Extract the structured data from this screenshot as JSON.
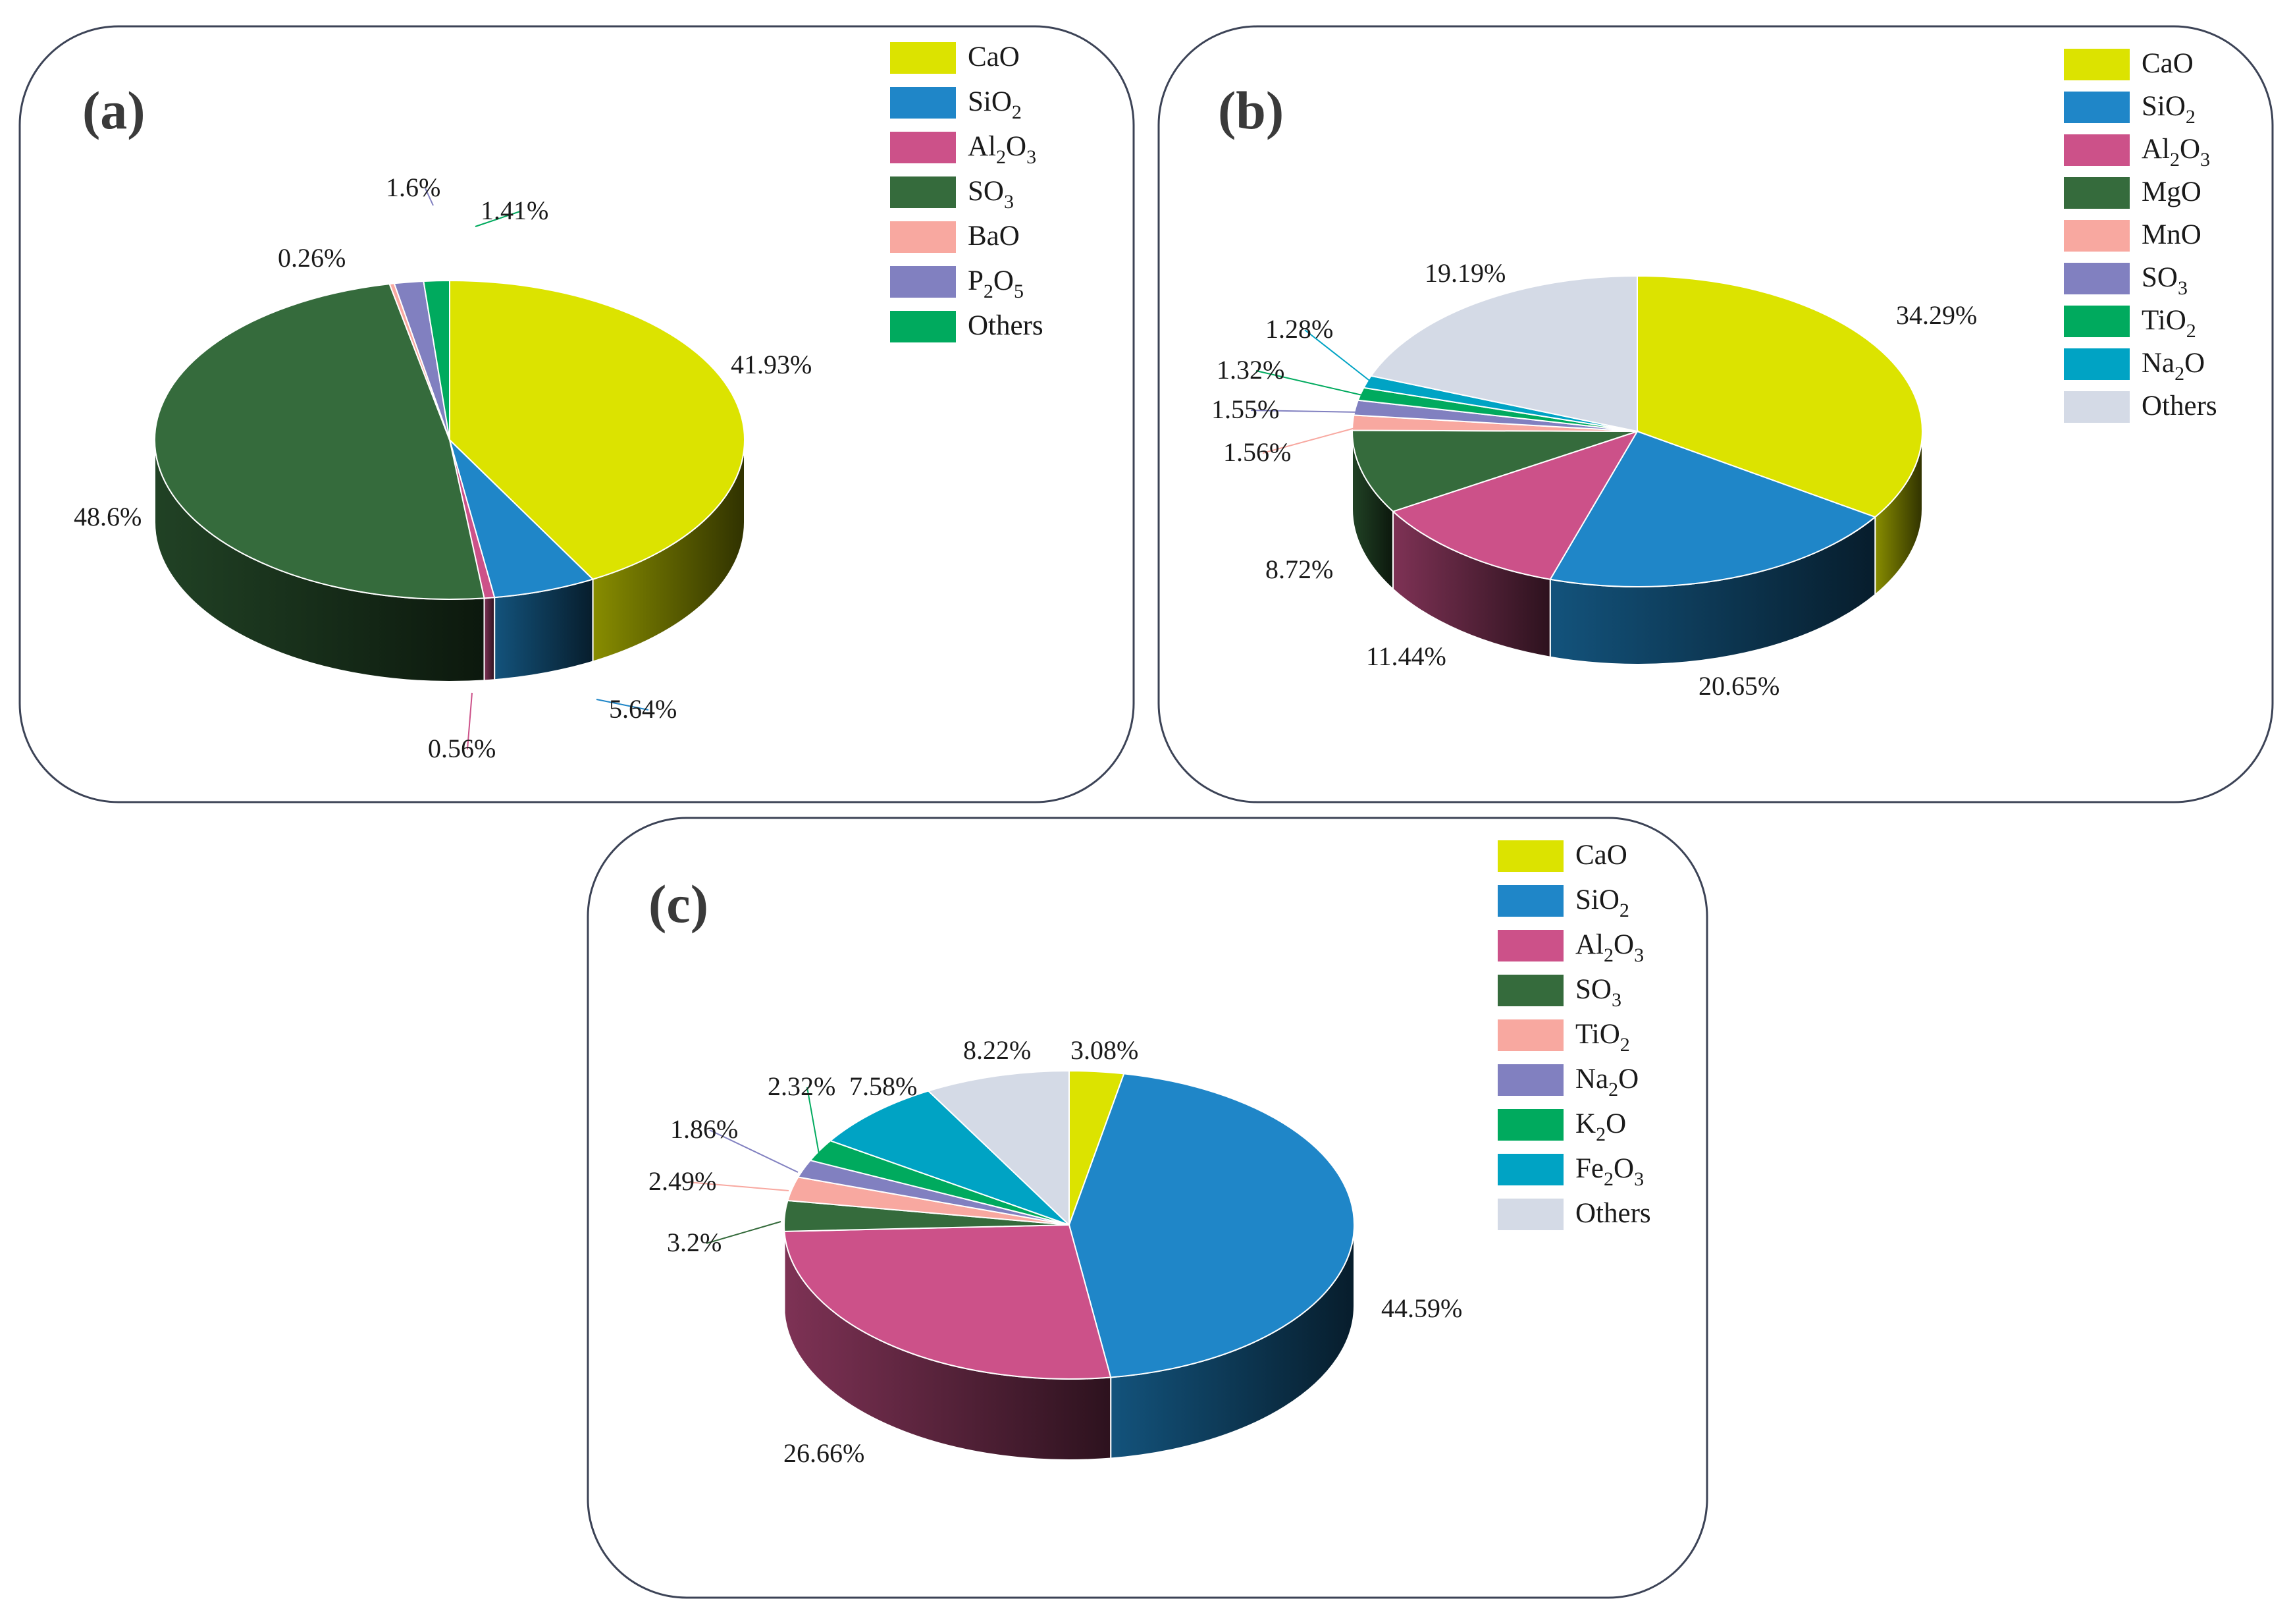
{
  "chart_data": [
    {
      "type": "pie",
      "label": "(a)",
      "slices": [
        {
          "name": "CaO",
          "value": 41.93,
          "label": "41.93%",
          "color": "#dce300"
        },
        {
          "name": "SiO2",
          "value": 5.64,
          "label": "5.64%",
          "color": "#1f86c8"
        },
        {
          "name": "Al2O3",
          "value": 0.56,
          "label": "0.56%",
          "color": "#cc5189"
        },
        {
          "name": "SO3",
          "value": 48.6,
          "label": "48.6%",
          "color": "#356b3c"
        },
        {
          "name": "BaO",
          "value": 0.26,
          "label": "0.26%",
          "color": "#f8a8a0"
        },
        {
          "name": "P2O5",
          "value": 1.6,
          "label": "1.6%",
          "color": "#8180c0"
        },
        {
          "name": "Others",
          "value": 1.41,
          "label": "1.41%",
          "color": "#00aa5e"
        }
      ],
      "legend": [
        {
          "base": "CaO",
          "sub": []
        },
        {
          "base": "SiO",
          "sub": [
            "2"
          ]
        },
        {
          "base": "Al O",
          "sub": [
            "2",
            "3"
          ]
        },
        {
          "base": "SO",
          "sub": [
            "3"
          ]
        },
        {
          "base": "BaO",
          "sub": []
        },
        {
          "base": "P O",
          "sub": [
            "2",
            "5"
          ]
        },
        {
          "base": "Others",
          "sub": []
        }
      ]
    },
    {
      "type": "pie",
      "label": "(b)",
      "slices": [
        {
          "name": "CaO",
          "value": 34.29,
          "label": "34.29%",
          "color": "#dce300"
        },
        {
          "name": "SiO2",
          "value": 20.65,
          "label": "20.65%",
          "color": "#1f86c8"
        },
        {
          "name": "Al2O3",
          "value": 11.44,
          "label": "11.44%",
          "color": "#cc5189"
        },
        {
          "name": "MgO",
          "value": 8.72,
          "label": "8.72%",
          "color": "#356b3c"
        },
        {
          "name": "MnO",
          "value": 1.56,
          "label": "1.56%",
          "color": "#f8a8a0"
        },
        {
          "name": "SO3",
          "value": 1.55,
          "label": "1.55%",
          "color": "#8180c0"
        },
        {
          "name": "TiO2",
          "value": 1.32,
          "label": "1.32%",
          "color": "#00aa5e"
        },
        {
          "name": "Na2O",
          "value": 1.28,
          "label": "1.28%",
          "color": "#00a3c4"
        },
        {
          "name": "Others",
          "value": 19.19,
          "label": "19.19%",
          "color": "#d4dae6"
        }
      ],
      "legend": [
        {
          "base": "CaO",
          "sub": []
        },
        {
          "base": "SiO",
          "sub": [
            "2"
          ]
        },
        {
          "base": "Al O",
          "sub": [
            "2",
            "3"
          ]
        },
        {
          "base": "MgO",
          "sub": []
        },
        {
          "base": "MnO",
          "sub": []
        },
        {
          "base": "SO",
          "sub": [
            "3"
          ]
        },
        {
          "base": "TiO",
          "sub": [
            "2"
          ]
        },
        {
          "base": "Na O",
          "sub": [
            "2"
          ]
        },
        {
          "base": "Others",
          "sub": []
        }
      ]
    },
    {
      "type": "pie",
      "label": "(c)",
      "slices": [
        {
          "name": "CaO",
          "value": 3.08,
          "label": "3.08%",
          "color": "#dce300"
        },
        {
          "name": "SiO2",
          "value": 44.59,
          "label": "44.59%",
          "color": "#1f86c8"
        },
        {
          "name": "Al2O3",
          "value": 26.66,
          "label": "26.66%",
          "color": "#cc5189"
        },
        {
          "name": "SO3",
          "value": 3.2,
          "label": "3.2%",
          "color": "#356b3c"
        },
        {
          "name": "TiO2",
          "value": 2.49,
          "label": "2.49%",
          "color": "#f8a8a0"
        },
        {
          "name": "Na2O",
          "value": 1.86,
          "label": "1.86%",
          "color": "#8180c0"
        },
        {
          "name": "K2O",
          "value": 2.32,
          "label": "2.32%",
          "color": "#00aa5e"
        },
        {
          "name": "Fe2O3",
          "value": 7.58,
          "label": "7.58%",
          "color": "#00a3c4"
        },
        {
          "name": "Others",
          "value": 8.22,
          "label": "8.22%",
          "color": "#d4dae6"
        }
      ],
      "legend": [
        {
          "base": "CaO",
          "sub": []
        },
        {
          "base": "SiO",
          "sub": [
            "2"
          ]
        },
        {
          "base": "Al O",
          "sub": [
            "2",
            "3"
          ]
        },
        {
          "base": "SO",
          "sub": [
            "3"
          ]
        },
        {
          "base": "TiO",
          "sub": [
            "2"
          ]
        },
        {
          "base": "Na O",
          "sub": [
            "2"
          ]
        },
        {
          "base": "K O",
          "sub": [
            "2"
          ]
        },
        {
          "base": "Fe O",
          "sub": [
            "2",
            "3"
          ]
        },
        {
          "base": "Others",
          "sub": []
        }
      ]
    }
  ]
}
